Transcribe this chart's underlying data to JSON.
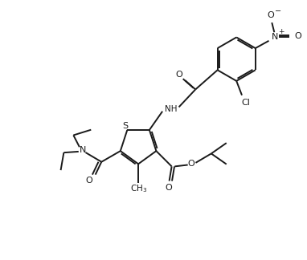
{
  "bg_color": "#ffffff",
  "line_color": "#1a1a1a",
  "line_width": 1.4,
  "figsize": [
    3.82,
    3.24
  ],
  "dpi": 100,
  "xlim": [
    0,
    10
  ],
  "ylim": [
    0,
    8.5
  ]
}
